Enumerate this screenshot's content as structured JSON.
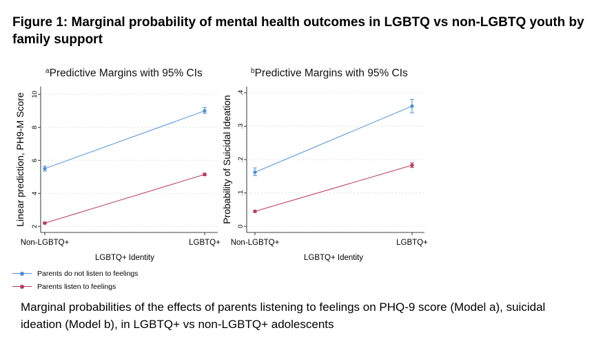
{
  "figure": {
    "title": "Figure 1: Marginal probability of mental health outcomes in LGBTQ vs non-LGBTQ youth by family support",
    "caption": "Marginal probabilities of the effects of parents listening to feelings on PHQ-9 score (Model a), suicidal ideation (Model b), in LGBTQ+ vs non-LGBTQ+ adolescents"
  },
  "legend": [
    {
      "label": "Parents do not listen to feelings",
      "color": "#4a8fd6"
    },
    {
      "label": "Parents listen to feelings",
      "color": "#b83a5e"
    }
  ],
  "chart_data": [
    {
      "type": "line",
      "panel_letter": "a",
      "title": "Predictive Margins with 95% CIs",
      "xlabel": "LGBTQ+ Identity",
      "ylabel": "Linear prediction, PH9-M Score",
      "categories": [
        "Non-LGBTQ+",
        "LGBTQ+"
      ],
      "yticks": [
        "2",
        "4",
        "6",
        "8",
        "10"
      ],
      "ylim": [
        1.8,
        10.3
      ],
      "grid": true,
      "series": [
        {
          "name": "Parents do not listen to feelings",
          "color": "#4a8fd6",
          "values": [
            5.5,
            9.0
          ],
          "ci_low": [
            5.35,
            8.85
          ],
          "ci_high": [
            5.65,
            9.2
          ]
        },
        {
          "name": "Parents listen to feelings",
          "color": "#b83a5e",
          "values": [
            2.2,
            5.15
          ],
          "ci_low": [
            2.15,
            5.07
          ],
          "ci_high": [
            2.25,
            5.23
          ]
        }
      ]
    },
    {
      "type": "line",
      "panel_letter": "b",
      "title": "Predictive Margins with 95% CIs",
      "xlabel": "LGBTQ+ Identity",
      "ylabel": "Probability of Suicidal Ideation",
      "categories": [
        "Non-LGBTQ+",
        "LGBTQ+"
      ],
      "yticks": [
        "0",
        ".1",
        ".2",
        ".3",
        ".4"
      ],
      "ylim": [
        -0.01,
        0.41
      ],
      "grid": true,
      "series": [
        {
          "name": "Parents do not listen to feelings",
          "color": "#4a8fd6",
          "values": [
            0.162,
            0.36
          ],
          "ci_low": [
            0.152,
            0.34
          ],
          "ci_high": [
            0.175,
            0.38
          ]
        },
        {
          "name": "Parents listen to feelings",
          "color": "#b83a5e",
          "values": [
            0.045,
            0.183
          ],
          "ci_low": [
            0.043,
            0.176
          ],
          "ci_high": [
            0.047,
            0.19
          ]
        }
      ]
    }
  ]
}
